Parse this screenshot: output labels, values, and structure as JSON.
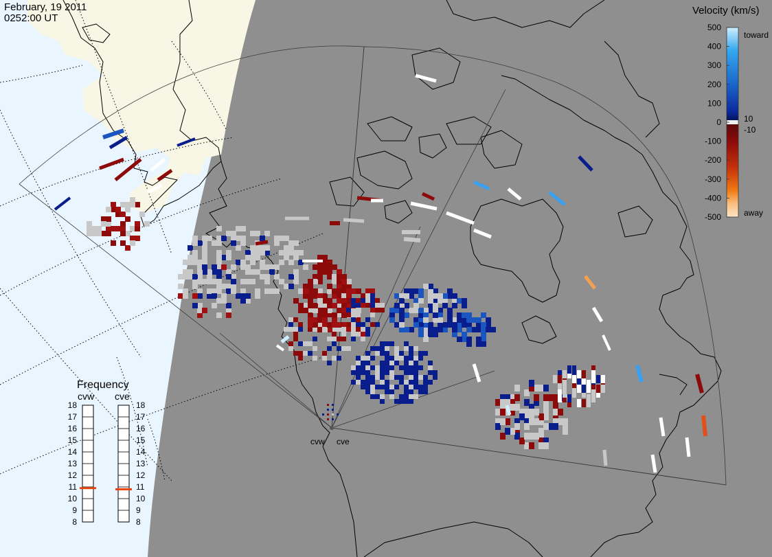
{
  "header": {
    "date": "February, 19 2011",
    "time": "0252:00 UT"
  },
  "colors": {
    "night": "#8f8f8f",
    "day_ocean": "#eaf6ff",
    "day_land": "#f8f7e6",
    "ground_scatter": "#c8c8c8"
  },
  "radars": [
    {
      "code": "cvw",
      "label": "cvw",
      "frequency_mhz": 10.9
    },
    {
      "code": "cve",
      "label": "cve",
      "frequency_mhz": 10.8
    }
  ],
  "velocity_scale": {
    "title": "Velocity (km/s)",
    "ticks_top": [
      "500",
      "400",
      "300",
      "200",
      "100",
      "10",
      "0",
      "-10"
    ],
    "ticks_bottom": [
      "-100",
      "-200",
      "-300",
      "-400",
      "-500"
    ],
    "ticks": [
      {
        "label": "500",
        "value": 500
      },
      {
        "label": "400",
        "value": 400
      },
      {
        "label": "300",
        "value": 300
      },
      {
        "label": "200",
        "value": 200
      },
      {
        "label": "100",
        "value": 100
      },
      {
        "label": "0",
        "value": 0
      },
      {
        "label": "-100",
        "value": -100
      },
      {
        "label": "-200",
        "value": -200
      },
      {
        "label": "-300",
        "value": -300
      },
      {
        "label": "-400",
        "value": -400
      },
      {
        "label": "-500",
        "value": -500
      }
    ],
    "near_zero_labels": [
      "10",
      "-10"
    ],
    "toward_label": "toward",
    "away_label": "away",
    "color_stops": [
      "#cfeeff",
      "#35a8f0",
      "#1a66c8",
      "#0b2b9e",
      "#05145e",
      "#5b0a0a",
      "#8c0a0a",
      "#c4320a",
      "#f07a14",
      "#fbbf7e",
      "#ffe4c8"
    ]
  },
  "frequency_panel": {
    "title": "Frequency",
    "scale": [
      "18",
      "17",
      "16",
      "15",
      "14",
      "13",
      "12",
      "11",
      "10",
      "9",
      "8"
    ],
    "marker_color": "#e8430f"
  }
}
